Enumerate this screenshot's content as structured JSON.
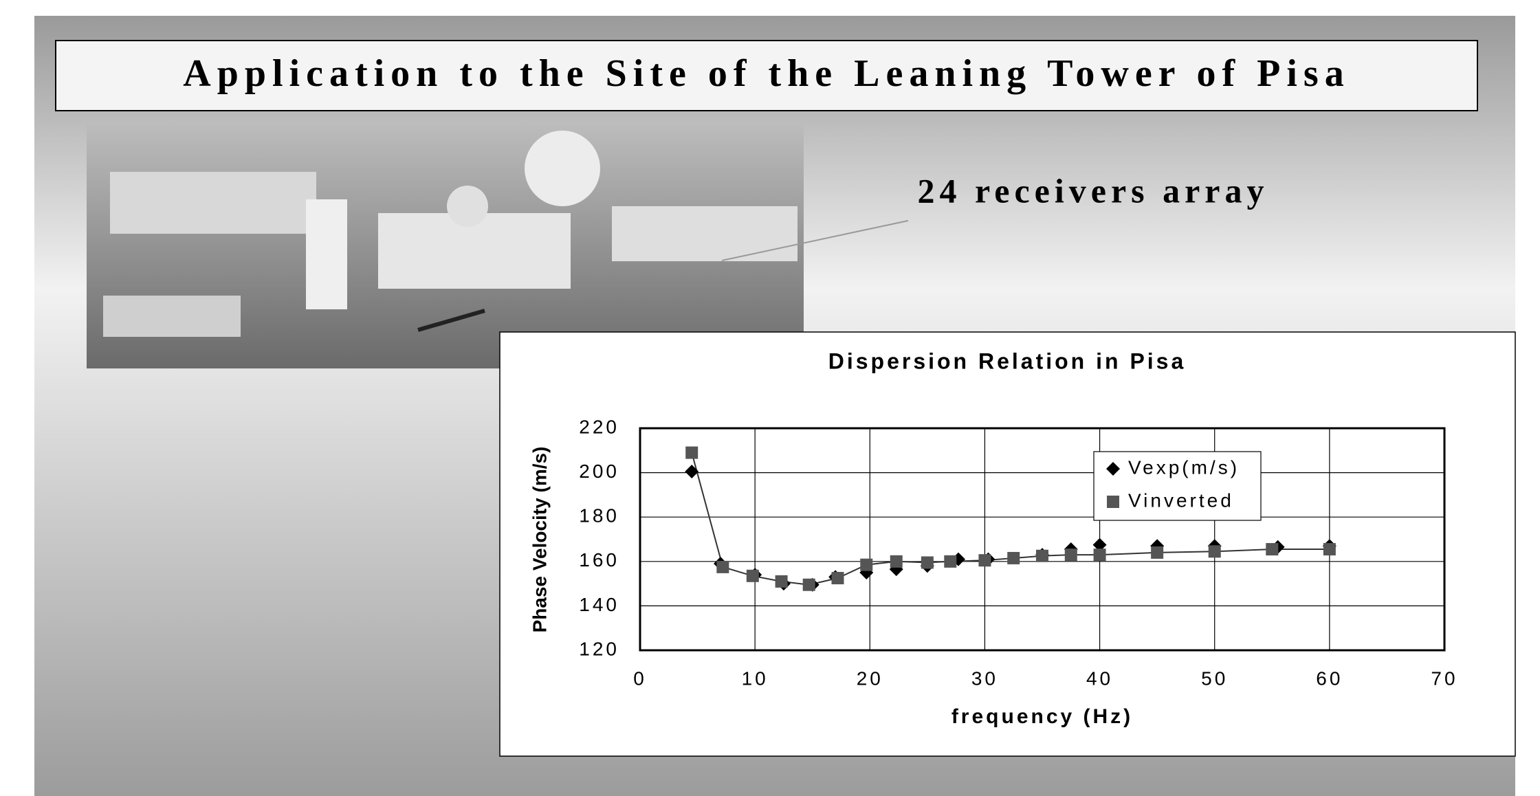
{
  "slide_title": "Application to the Site of the Leaning Tower of Pisa",
  "annotation": "24 receivers array",
  "chart_data": {
    "type": "scatter",
    "title": "Dispersion Relation in Pisa",
    "x_label": "frequency (Hz)",
    "y_label": "Phase Velocity (m/s)",
    "xlim": [
      0,
      70
    ],
    "xticks": [
      0,
      10,
      20,
      30,
      40,
      50,
      60,
      70
    ],
    "ylim": [
      120,
      220
    ],
    "yticks": [
      120,
      140,
      160,
      180,
      200,
      220
    ],
    "grid": true,
    "legend": "top-right",
    "series": [
      {
        "name": "Vexp(m/s)",
        "color": "#000000",
        "marker": "diamond",
        "line": false,
        "x": [
          4.5,
          7,
          10,
          12.5,
          15,
          17,
          19.7,
          22.3,
          25,
          27.7,
          30.3,
          35,
          37.5,
          40,
          45,
          50,
          55.5,
          60
        ],
        "values": [
          200.5,
          159,
          154,
          150,
          149.5,
          153,
          155,
          156.5,
          158,
          161,
          161,
          163,
          165.5,
          167.5,
          167,
          167,
          166.5,
          167
        ]
      },
      {
        "name": "Vinverted",
        "color": "#555555",
        "marker": "square",
        "line": true,
        "x": [
          4.5,
          7.2,
          9.8,
          12.3,
          14.7,
          17.2,
          19.7,
          22.3,
          25,
          27,
          30,
          32.5,
          35,
          37.5,
          40,
          45,
          50,
          55,
          60
        ],
        "values": [
          209,
          157.5,
          153.5,
          151,
          149.5,
          152.5,
          158.5,
          160,
          159.5,
          160,
          160.5,
          161.5,
          162.5,
          163,
          163,
          164,
          164.5,
          165.5,
          165.5
        ]
      }
    ]
  }
}
